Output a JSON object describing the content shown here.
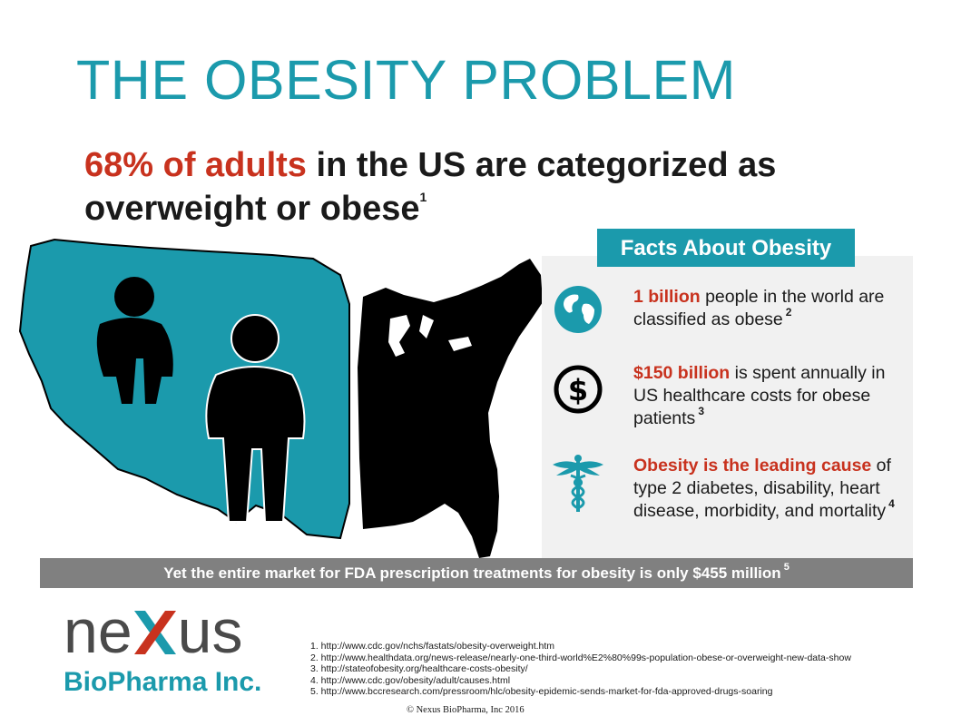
{
  "title": "THE OBESITY PROBLEM",
  "headline": {
    "highlight": "68% of adults",
    "rest": " in the US are categorized as overweight or obese",
    "ref": "1"
  },
  "facts": {
    "heading": "Facts About Obesity",
    "items": [
      {
        "icon": "globe-icon",
        "highlight": "1 billion",
        "text": " people in the world are classified as obese",
        "ref": "2"
      },
      {
        "icon": "dollar-coin-icon",
        "highlight": "$150 billion",
        "text": " is spent annually in US healthcare costs for obese patients",
        "ref": "3"
      },
      {
        "icon": "caduceus-icon",
        "highlight": "Obesity is the leading cause",
        "text": " of type 2 diabetes, disability, heart disease, morbidity, and mortality",
        "ref": "4"
      }
    ]
  },
  "market": {
    "text": "Yet the entire market for FDA prescription treatments for obesity is only $455 million",
    "ref": "5"
  },
  "logo": {
    "part1": "ne",
    "x": "X",
    "part2": "us",
    "sub": "BioPharma Inc."
  },
  "references": [
    "1. http://www.cdc.gov/nchs/fastats/obesity-overweight.htm",
    "2. http://www.healthdata.org/news-release/nearly-one-third-world%E2%80%99s-population-obese-or-overweight-new-data-show",
    "3. http://stateofobesity.org/healthcare-costs-obesity/",
    "4. http://www.cdc.gov/obesity/adult/causes.html",
    "5. http://www.bccresearch.com/pressroom/hlc/obesity-epidemic-sends-market-for-fda-approved-drugs-soaring"
  ],
  "copyright": "© Nexus BioPharma, Inc 2016",
  "colors": {
    "teal": "#1b9aac",
    "red": "#c8321e",
    "gray_bar": "#808080",
    "panel": "#f1f1f1"
  }
}
